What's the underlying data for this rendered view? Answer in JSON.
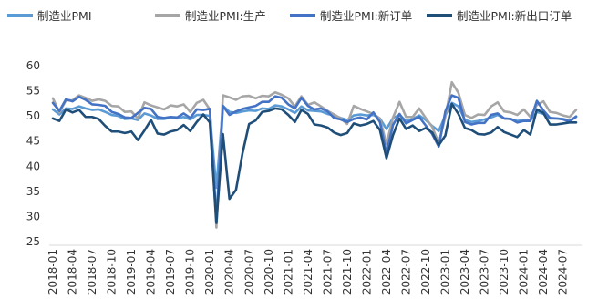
{
  "chart_data": {
    "type": "line",
    "title": "",
    "xlabel": "",
    "ylabel": "",
    "ylim": [
      25,
      60
    ],
    "yticks": [
      25,
      30,
      35,
      40,
      45,
      50,
      55,
      60
    ],
    "grid": false,
    "legend_position": "top",
    "x": [
      "2018-01",
      "2018-02",
      "2018-03",
      "2018-04",
      "2018-05",
      "2018-06",
      "2018-07",
      "2018-08",
      "2018-09",
      "2018-10",
      "2018-11",
      "2018-12",
      "2019-01",
      "2019-02",
      "2019-03",
      "2019-04",
      "2019-05",
      "2019-06",
      "2019-07",
      "2019-08",
      "2019-09",
      "2019-10",
      "2019-11",
      "2019-12",
      "2020-01",
      "2020-02",
      "2020-03",
      "2020-04",
      "2020-05",
      "2020-06",
      "2020-07",
      "2020-08",
      "2020-09",
      "2020-10",
      "2020-11",
      "2020-12",
      "2021-01",
      "2021-02",
      "2021-03",
      "2021-04",
      "2021-05",
      "2021-06",
      "2021-07",
      "2021-08",
      "2021-09",
      "2021-10",
      "2021-11",
      "2021-12",
      "2022-01",
      "2022-02",
      "2022-03",
      "2022-04",
      "2022-05",
      "2022-06",
      "2022-07",
      "2022-08",
      "2022-09",
      "2022-10",
      "2022-11",
      "2022-12",
      "2023-01",
      "2023-02",
      "2023-03",
      "2023-04",
      "2023-05",
      "2023-06",
      "2023-07",
      "2023-08",
      "2023-09",
      "2023-10",
      "2023-11",
      "2023-12",
      "2024-01",
      "2024-02",
      "2024-03",
      "2024-04",
      "2024-05",
      "2024-06",
      "2024-07",
      "2024-08",
      "2024-09"
    ],
    "xticks": [
      "2018-01",
      "2018-04",
      "2018-07",
      "2018-10",
      "2019-01",
      "2019-04",
      "2019-07",
      "2019-10",
      "2020-01",
      "2020-04",
      "2020-07",
      "2020-10",
      "2021-01",
      "2021-04",
      "2021-07",
      "2021-10",
      "2022-01",
      "2022-04",
      "2022-07",
      "2022-10",
      "2023-01",
      "2023-04",
      "2023-07",
      "2023-10",
      "2024-01",
      "2024-04",
      "2024-07"
    ],
    "series": [
      {
        "name": "制造业PMI",
        "color": "#5b9bd5",
        "width": 2.6,
        "values": [
          51.3,
          50.3,
          51.5,
          51.4,
          51.9,
          51.5,
          51.2,
          51.3,
          50.8,
          50.2,
          50.0,
          49.4,
          49.5,
          49.2,
          50.5,
          50.1,
          49.4,
          49.4,
          49.7,
          49.5,
          49.8,
          49.3,
          50.2,
          50.2,
          50.0,
          35.7,
          52.0,
          50.8,
          50.6,
          50.9,
          51.1,
          51.0,
          51.5,
          51.4,
          52.1,
          51.9,
          51.3,
          50.6,
          51.9,
          51.1,
          51.0,
          50.9,
          50.4,
          50.1,
          49.6,
          49.2,
          50.1,
          50.3,
          50.1,
          50.2,
          49.5,
          47.4,
          49.6,
          50.2,
          49.0,
          49.4,
          50.1,
          49.2,
          48.0,
          47.0,
          50.1,
          52.6,
          51.9,
          49.2,
          48.8,
          49.0,
          49.3,
          49.7,
          50.2,
          49.5,
          49.4,
          49.0,
          49.2,
          49.1,
          50.8,
          50.4,
          49.5,
          49.5,
          49.4,
          49.1,
          49.8
        ]
      },
      {
        "name": "制造业PMI:生产",
        "color": "#a6a6a6",
        "width": 2.6,
        "values": [
          53.5,
          50.7,
          53.1,
          53.1,
          54.1,
          53.6,
          53.0,
          53.3,
          53.0,
          52.0,
          51.9,
          50.8,
          50.9,
          49.5,
          52.7,
          52.1,
          51.7,
          51.3,
          52.1,
          51.9,
          52.3,
          50.8,
          52.6,
          53.2,
          51.3,
          27.8,
          54.1,
          53.7,
          53.2,
          53.9,
          54.0,
          53.5,
          54.0,
          53.9,
          54.7,
          54.2,
          53.5,
          51.9,
          53.9,
          52.2,
          52.7,
          51.9,
          51.0,
          50.3,
          49.5,
          48.4,
          52.0,
          51.4,
          50.9,
          50.4,
          49.5,
          44.4,
          49.7,
          52.8,
          49.8,
          49.8,
          51.5,
          49.6,
          47.8,
          44.6,
          49.8,
          56.7,
          54.6,
          50.2,
          49.6,
          50.3,
          50.2,
          51.9,
          52.7,
          50.9,
          50.7,
          50.2,
          51.3,
          49.8,
          52.2,
          52.9,
          50.8,
          50.6,
          50.1,
          49.8,
          51.2
        ]
      },
      {
        "name": "制造业PMI:新订单",
        "color": "#4472c4",
        "width": 2.6,
        "values": [
          52.6,
          51.0,
          53.3,
          52.9,
          53.8,
          53.2,
          52.3,
          52.2,
          52.0,
          50.8,
          50.4,
          49.7,
          49.6,
          50.6,
          51.6,
          51.4,
          49.8,
          49.6,
          49.8,
          49.7,
          50.5,
          49.6,
          51.3,
          51.2,
          51.4,
          29.3,
          52.0,
          50.2,
          50.9,
          51.4,
          51.7,
          52.0,
          52.8,
          52.8,
          53.9,
          53.6,
          52.3,
          51.5,
          53.6,
          52.0,
          51.3,
          51.5,
          50.9,
          49.6,
          49.3,
          48.8,
          49.4,
          49.7,
          49.3,
          50.7,
          48.8,
          42.6,
          48.2,
          50.4,
          48.5,
          49.2,
          49.8,
          48.1,
          46.4,
          43.9,
          50.9,
          54.1,
          53.6,
          48.8,
          48.3,
          48.6,
          48.6,
          50.2,
          50.5,
          49.5,
          49.4,
          48.7,
          49.0,
          49.0,
          53.0,
          51.1,
          49.6,
          49.5,
          49.3,
          48.9,
          49.9
        ]
      },
      {
        "name": "制造业PMI:新出口订单",
        "color": "#1f4e79",
        "width": 2.6,
        "values": [
          49.5,
          49.0,
          51.3,
          50.7,
          51.2,
          49.8,
          49.8,
          49.4,
          48.0,
          46.9,
          46.9,
          46.6,
          46.9,
          45.2,
          47.1,
          49.2,
          46.5,
          46.3,
          46.9,
          47.2,
          48.2,
          47.0,
          48.8,
          50.3,
          48.7,
          28.7,
          46.4,
          33.5,
          35.3,
          42.6,
          48.4,
          49.1,
          50.8,
          51.0,
          51.5,
          51.3,
          50.2,
          48.8,
          51.2,
          50.4,
          48.3,
          48.1,
          47.7,
          46.7,
          46.2,
          46.6,
          48.5,
          48.1,
          48.4,
          49.0,
          47.2,
          41.6,
          46.2,
          49.5,
          47.4,
          48.1,
          47.0,
          47.6,
          46.7,
          44.2,
          46.1,
          52.4,
          50.4,
          47.6,
          47.2,
          46.4,
          46.3,
          46.7,
          47.8,
          46.8,
          46.3,
          45.8,
          47.2,
          46.3,
          51.3,
          50.6,
          48.3,
          48.3,
          48.5,
          48.7,
          48.7
        ]
      }
    ]
  }
}
